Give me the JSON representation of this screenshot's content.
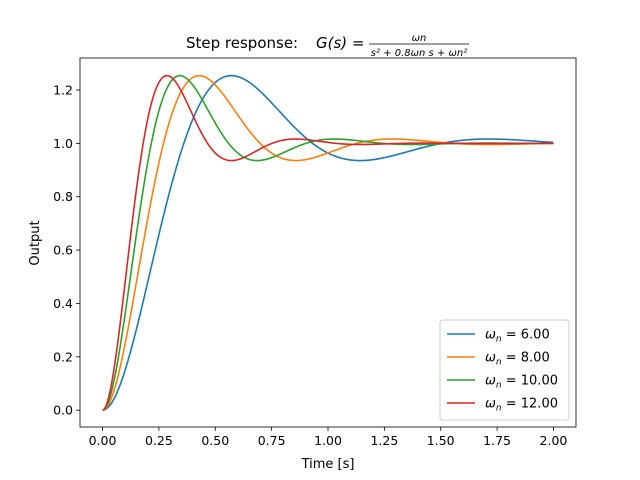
{
  "chart_data": {
    "type": "line",
    "title": {
      "prefix": "Step response: ",
      "lhs": "G(s) = ",
      "numerator": "ωn",
      "denominator": "s² + 0.8ωn s + ωn²"
    },
    "xlabel": "Time [s]",
    "ylabel": "Output",
    "xlim": [
      -0.1,
      2.1
    ],
    "ylim": [
      -0.063,
      1.32
    ],
    "xticks": [
      0.0,
      0.25,
      0.5,
      0.75,
      1.0,
      1.25,
      1.5,
      1.75,
      2.0
    ],
    "xtick_labels": [
      "0.00",
      "0.25",
      "0.50",
      "0.75",
      "1.00",
      "1.25",
      "1.50",
      "1.75",
      "2.00"
    ],
    "yticks": [
      0.0,
      0.2,
      0.4,
      0.6,
      0.8,
      1.0,
      1.2
    ],
    "ytick_labels": [
      "0.0",
      "0.2",
      "0.4",
      "0.6",
      "0.8",
      "1.0",
      "1.2"
    ],
    "grid": false,
    "legend_position": "lower-right",
    "damping_ratio": 0.4,
    "x_range": [
      0,
      2
    ],
    "series": [
      {
        "name": "ωn = 6.00",
        "legend_symbol": "ω",
        "legend_subscript": "n",
        "legend_value": " = 6.00",
        "wn": 6,
        "color": "#1f77b4"
      },
      {
        "name": "ωn = 8.00",
        "legend_symbol": "ω",
        "legend_subscript": "n",
        "legend_value": " = 8.00",
        "wn": 8,
        "color": "#ff7f0e"
      },
      {
        "name": "ωn = 10.00",
        "legend_symbol": "ω",
        "legend_subscript": "n",
        "legend_value": " = 10.00",
        "wn": 10,
        "color": "#2ca02c"
      },
      {
        "name": "ωn = 12.00",
        "legend_symbol": "ω",
        "legend_subscript": "n",
        "legend_value": " = 12.00",
        "wn": 12,
        "color": "#d62728"
      }
    ]
  }
}
